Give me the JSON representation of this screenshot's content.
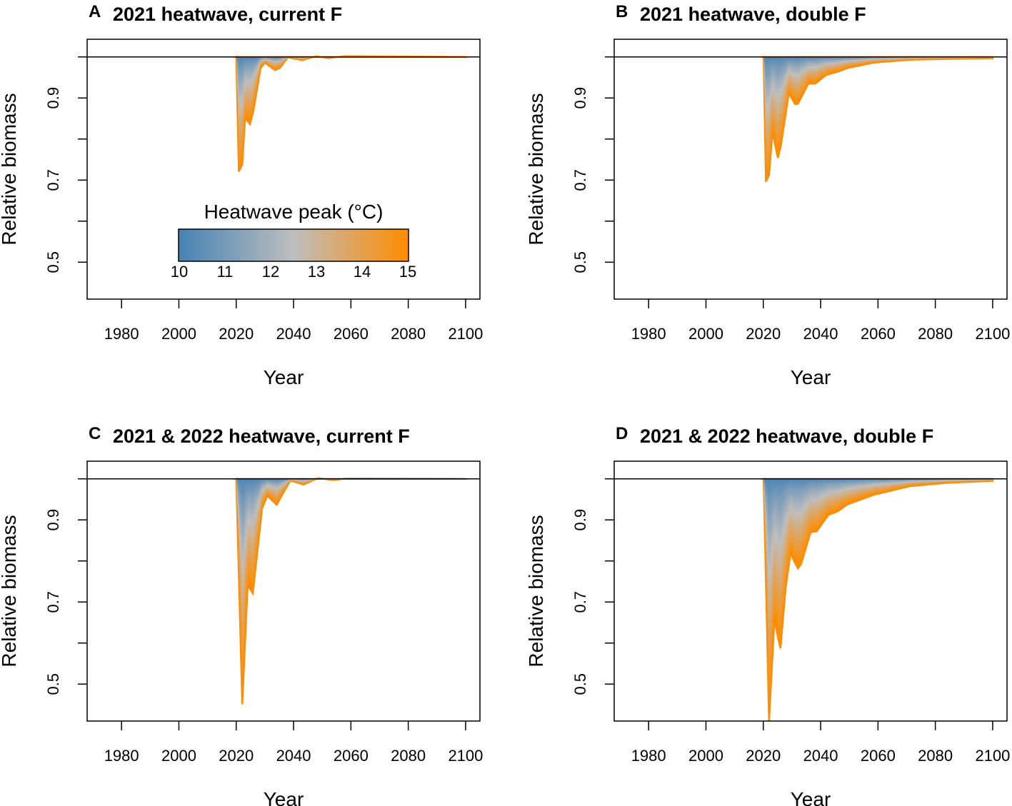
{
  "colors": {
    "low": "#4682b4",
    "mid": "#bebebe",
    "high": "#ff8c00"
  },
  "colorbar": {
    "title": "Heatwave peak (°C)",
    "ticks": [
      "10",
      "11",
      "12",
      "13",
      "14",
      "15"
    ],
    "range": [
      10,
      15
    ]
  },
  "chart_data": [
    {
      "type": "area",
      "letter": "A",
      "title": "2021 heatwave, current F",
      "xlabel": "Year",
      "ylabel": "Relative biomass",
      "xlim": [
        1968,
        2105
      ],
      "ylim": [
        0.41,
        1.043
      ],
      "xticks": [
        "1980",
        "2000",
        "2020",
        "2040",
        "2060",
        "2080",
        "2100"
      ],
      "yticks": [
        "0.5",
        "0.7",
        "0.9"
      ],
      "reference_line": 1.0,
      "series_15C": {
        "x": [
          2020,
          2020.9,
          2022.1,
          2023.1,
          2024.8,
          2026,
          2028.5,
          2030,
          2033.5,
          2035.2,
          2038,
          2043,
          2048,
          2052,
          2058,
          2100
        ],
        "y": [
          1.0,
          0.721,
          0.738,
          0.851,
          0.836,
          0.869,
          0.973,
          0.986,
          0.968,
          0.973,
          0.999,
          0.992,
          1.002,
          0.997,
          1.002,
          1.0
        ]
      },
      "series_10C": 1.0,
      "show_colorbar": true
    },
    {
      "type": "area",
      "letter": "B",
      "title": "2021 heatwave, double F",
      "xlabel": "Year",
      "ylabel": "Relative biomass",
      "xlim": [
        1968,
        2105
      ],
      "ylim": [
        0.41,
        1.043
      ],
      "xticks": [
        "1980",
        "2000",
        "2020",
        "2040",
        "2060",
        "2080",
        "2100"
      ],
      "yticks": [
        "0.5",
        "0.7",
        "0.9"
      ],
      "reference_line": 1.0,
      "series_15C": {
        "x": [
          2020.1,
          2020.9,
          2022,
          2023.2,
          2025.1,
          2026.1,
          2028.9,
          2031.1,
          2032.1,
          2035.7,
          2038.2,
          2041.9,
          2046,
          2049.4,
          2058.5,
          2071,
          2083.4,
          2100
        ],
        "y": [
          1.0,
          0.696,
          0.712,
          0.817,
          0.754,
          0.782,
          0.912,
          0.885,
          0.886,
          0.935,
          0.935,
          0.956,
          0.964,
          0.973,
          0.986,
          0.993,
          0.995,
          0.997
        ]
      },
      "series_10C": 1.0,
      "show_colorbar": false
    },
    {
      "type": "area",
      "letter": "C",
      "title": "2021 & 2022 heatwave, current F",
      "xlabel": "Year",
      "ylabel": "Relative biomass",
      "xlim": [
        1968,
        2105
      ],
      "ylim": [
        0.41,
        1.043
      ],
      "xticks": [
        "1980",
        "2000",
        "2020",
        "2040",
        "2060",
        "2080",
        "2100"
      ],
      "yticks": [
        "0.5",
        "0.7",
        "0.9"
      ],
      "reference_line": 1.0,
      "series_15C": {
        "x": [
          2020,
          2022.1,
          2024,
          2025.8,
          2029,
          2030.8,
          2034.1,
          2036,
          2038.9,
          2043.5,
          2048.5,
          2053.9,
          2058,
          2100
        ],
        "y": [
          1.0,
          0.451,
          0.741,
          0.721,
          0.927,
          0.959,
          0.937,
          0.961,
          0.996,
          0.986,
          1.002,
          0.997,
          1.001,
          1.0
        ]
      },
      "series_10C": 1.0,
      "show_colorbar": false
    },
    {
      "type": "area",
      "letter": "D",
      "title": "2021 & 2022 heatwave, double F",
      "xlabel": "Year",
      "ylabel": "Relative biomass",
      "xlim": [
        1968,
        2105
      ],
      "ylim": [
        0.41,
        1.043
      ],
      "xticks": [
        "1980",
        "2000",
        "2020",
        "2040",
        "2060",
        "2080",
        "2100"
      ],
      "yticks": [
        "0.5",
        "0.7",
        "0.9"
      ],
      "reference_line": 1.0,
      "series_15C": {
        "x": [
          2020.1,
          2022,
          2023.9,
          2025.1,
          2026,
          2027.8,
          2029.5,
          2031,
          2032.1,
          2033.2,
          2036.5,
          2038.6,
          2042.7,
          2046,
          2049.4,
          2058.5,
          2071,
          2083.4,
          2100
        ],
        "y": [
          1.0,
          0.41,
          0.66,
          0.614,
          0.587,
          0.735,
          0.819,
          0.796,
          0.782,
          0.793,
          0.87,
          0.872,
          0.912,
          0.921,
          0.938,
          0.961,
          0.982,
          0.99,
          0.995
        ]
      },
      "series_10C": 1.0,
      "show_colorbar": false
    }
  ]
}
